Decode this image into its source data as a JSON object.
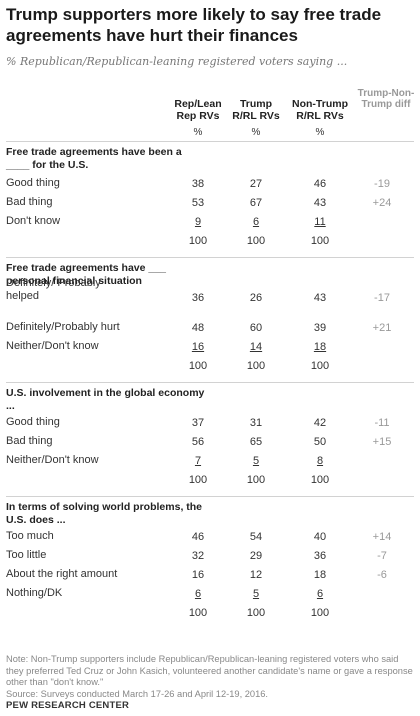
{
  "title": "Trump supporters more likely to say free trade agreements have hurt their finances",
  "subtitle": "% Republican/Republican-leaning registered voters saying ...",
  "headers": {
    "col1": "Rep/Lean Rep RVs",
    "col2": "Trump R/RL RVs",
    "col3": "Non-Trump R/RL RVs",
    "col4": "Trump-Non-Trump diff",
    "pct": "%"
  },
  "chart_data": {
    "type": "table",
    "columns": [
      "Rep/Lean Rep RVs",
      "Trump R/RL RVs",
      "Non-Trump R/RL RVs",
      "Trump-Non-Trump diff"
    ],
    "sections": [
      {
        "title": "Free trade agreements have been a ____ for the U.S.",
        "rows": [
          {
            "label": "Good thing",
            "values": [
              "38",
              "27",
              "46",
              "-19"
            ],
            "underline": false
          },
          {
            "label": "Bad thing",
            "values": [
              "53",
              "67",
              "43",
              "+24"
            ],
            "underline": false
          },
          {
            "label": "Don't know",
            "values": [
              "9",
              "6",
              "11",
              ""
            ],
            "underline": true
          },
          {
            "label": "",
            "values": [
              "100",
              "100",
              "100",
              ""
            ],
            "underline": false
          }
        ]
      },
      {
        "title": "Free trade agreements have ___ personal financial situation",
        "rows": [
          {
            "label": "Definitely/ Probably helped",
            "values": [
              "36",
              "26",
              "43",
              "-17"
            ],
            "underline": false
          },
          {
            "label": "Definitely/Probably hurt",
            "values": [
              "48",
              "60",
              "39",
              "+21"
            ],
            "underline": false
          },
          {
            "label": "Neither/Don't know",
            "values": [
              "16",
              "14",
              "18",
              ""
            ],
            "underline": true
          },
          {
            "label": "",
            "values": [
              "100",
              "100",
              "100",
              ""
            ],
            "underline": false
          }
        ]
      },
      {
        "title": "U.S. involvement in the global economy ...",
        "rows": [
          {
            "label": "Good thing",
            "values": [
              "37",
              "31",
              "42",
              "-11"
            ],
            "underline": false
          },
          {
            "label": "Bad thing",
            "values": [
              "56",
              "65",
              "50",
              "+15"
            ],
            "underline": false
          },
          {
            "label": "Neither/Don't know",
            "values": [
              "7",
              "5",
              "8",
              ""
            ],
            "underline": true
          },
          {
            "label": "",
            "values": [
              "100",
              "100",
              "100",
              ""
            ],
            "underline": false
          }
        ]
      },
      {
        "title": "In terms of solving world problems, the U.S. does ...",
        "rows": [
          {
            "label": "Too much",
            "values": [
              "46",
              "54",
              "40",
              "+14"
            ],
            "underline": false
          },
          {
            "label": "Too little",
            "values": [
              "32",
              "29",
              "36",
              "-7"
            ],
            "underline": false
          },
          {
            "label": "About the right amount",
            "values": [
              "16",
              "12",
              "18",
              "-6"
            ],
            "underline": false
          },
          {
            "label": "Nothing/DK",
            "values": [
              "6",
              "5",
              "6",
              ""
            ],
            "underline": true
          },
          {
            "label": "",
            "values": [
              "100",
              "100",
              "100",
              ""
            ],
            "underline": false
          }
        ]
      }
    ]
  },
  "note": "Note: Non-Trump supporters include Republican/Republican-leaning registered voters who said they preferred Ted Cruz or John Kasich, volunteered another candidate's name or gave a response other than \"don't know.\"",
  "source": "Source: Surveys conducted March 17-26 and April 12-19, 2016.",
  "credit": "PEW RESEARCH CENTER",
  "colors": {
    "text": "#222222",
    "muted": "#999999",
    "rule": "#d2d2d2"
  }
}
